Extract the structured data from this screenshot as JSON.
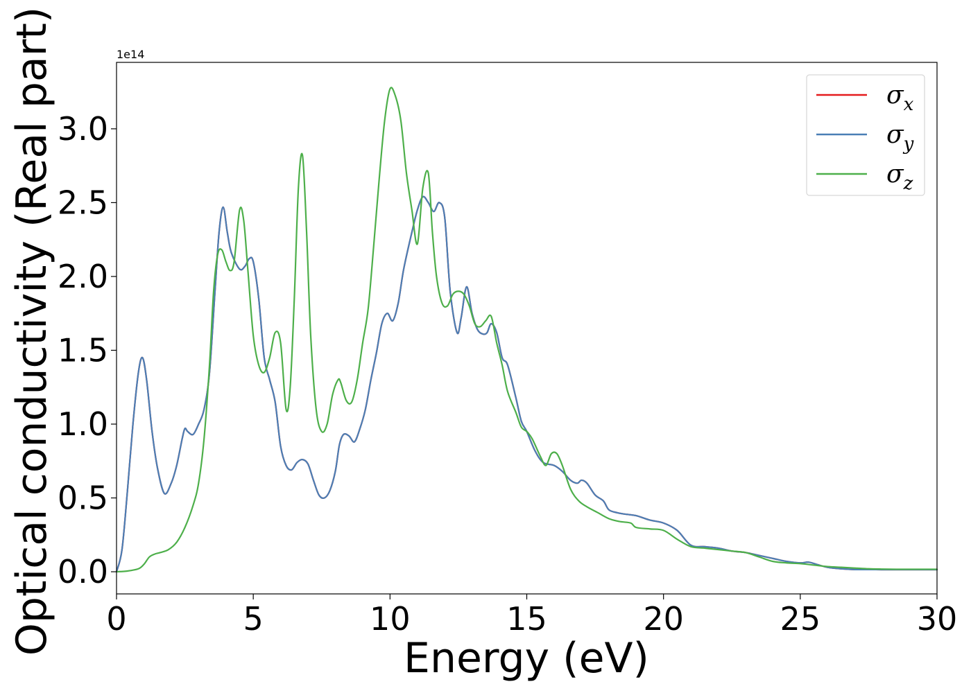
{
  "chart_data": {
    "type": "line",
    "xlabel": "Energy (eV)",
    "ylabel": "Optical conductivity (Real part)",
    "y_offset_label": "1e14",
    "xlim": [
      0,
      30
    ],
    "ylim": [
      -0.15,
      3.45
    ],
    "x_ticks": [
      "0",
      "5",
      "10",
      "15",
      "20",
      "25",
      "30"
    ],
    "y_ticks": [
      "0.0",
      "0.5",
      "1.0",
      "1.5",
      "2.0",
      "2.5",
      "3.0"
    ],
    "legend_position": "top-right",
    "grid": false,
    "series": [
      {
        "name": "σx",
        "label_symbol": "σ",
        "label_sub": "x",
        "color": "#e41a1c",
        "x": [
          0,
          0.2,
          0.4,
          0.6,
          0.8,
          0.95,
          1.1,
          1.3,
          1.5,
          1.75,
          2.0,
          2.2,
          2.4,
          2.5,
          2.6,
          2.8,
          3.0,
          3.2,
          3.4,
          3.6,
          3.75,
          3.9,
          4.05,
          4.2,
          4.5,
          4.7,
          4.85,
          5.0,
          5.2,
          5.4,
          5.6,
          5.8,
          6.0,
          6.2,
          6.4,
          6.6,
          6.8,
          7.0,
          7.2,
          7.4,
          7.6,
          7.8,
          8.0,
          8.15,
          8.3,
          8.5,
          8.7,
          8.9,
          9.1,
          9.3,
          9.5,
          9.7,
          9.9,
          10.1,
          10.3,
          10.5,
          10.8,
          11.0,
          11.2,
          11.4,
          11.6,
          11.8,
          12.0,
          12.2,
          12.45,
          12.6,
          12.8,
          13.0,
          13.2,
          13.4,
          13.55,
          13.7,
          13.9,
          14.1,
          14.3,
          14.6,
          14.8,
          15.0,
          15.3,
          15.6,
          16.0,
          16.3,
          16.6,
          16.85,
          17.0,
          17.2,
          17.5,
          17.8,
          18.0,
          18.3,
          18.6,
          19.0,
          19.5,
          20.0,
          20.5,
          21.0,
          21.5,
          22.0,
          22.5,
          23.0,
          23.5,
          24.0,
          24.5,
          25.0,
          25.3,
          25.6,
          26.0,
          26.5,
          27.0,
          27.5,
          28.0,
          28.5,
          29.0,
          29.5,
          30.0
        ],
        "y": [
          0,
          0.15,
          0.55,
          1.0,
          1.35,
          1.45,
          1.3,
          0.95,
          0.7,
          0.53,
          0.6,
          0.72,
          0.9,
          0.97,
          0.95,
          0.93,
          1.0,
          1.1,
          1.35,
          1.9,
          2.3,
          2.47,
          2.3,
          2.16,
          2.05,
          2.07,
          2.12,
          2.1,
          1.85,
          1.45,
          1.3,
          1.15,
          0.85,
          0.72,
          0.69,
          0.74,
          0.76,
          0.73,
          0.62,
          0.52,
          0.5,
          0.55,
          0.68,
          0.86,
          0.93,
          0.92,
          0.88,
          0.97,
          1.1,
          1.3,
          1.48,
          1.68,
          1.75,
          1.7,
          1.82,
          2.05,
          2.3,
          2.45,
          2.54,
          2.5,
          2.44,
          2.5,
          2.4,
          1.9,
          1.62,
          1.72,
          1.93,
          1.75,
          1.64,
          1.61,
          1.62,
          1.68,
          1.62,
          1.45,
          1.4,
          1.18,
          1.02,
          0.95,
          0.82,
          0.74,
          0.72,
          0.68,
          0.62,
          0.6,
          0.62,
          0.6,
          0.52,
          0.48,
          0.42,
          0.4,
          0.39,
          0.38,
          0.35,
          0.33,
          0.28,
          0.18,
          0.17,
          0.16,
          0.14,
          0.13,
          0.11,
          0.09,
          0.07,
          0.06,
          0.065,
          0.05,
          0.03,
          0.02,
          0.015,
          0.015,
          0.014,
          0.014,
          0.014,
          0.014,
          0.014
        ]
      },
      {
        "name": "σy",
        "label_symbol": "σ",
        "label_sub": "y",
        "color": "#4a7fb5",
        "x": [
          0,
          0.2,
          0.4,
          0.6,
          0.8,
          0.95,
          1.1,
          1.3,
          1.5,
          1.75,
          2.0,
          2.2,
          2.4,
          2.5,
          2.6,
          2.8,
          3.0,
          3.2,
          3.4,
          3.6,
          3.75,
          3.9,
          4.05,
          4.2,
          4.5,
          4.7,
          4.85,
          5.0,
          5.2,
          5.4,
          5.6,
          5.8,
          6.0,
          6.2,
          6.4,
          6.6,
          6.8,
          7.0,
          7.2,
          7.4,
          7.6,
          7.8,
          8.0,
          8.15,
          8.3,
          8.5,
          8.7,
          8.9,
          9.1,
          9.3,
          9.5,
          9.7,
          9.9,
          10.1,
          10.3,
          10.5,
          10.8,
          11.0,
          11.2,
          11.4,
          11.6,
          11.8,
          12.0,
          12.2,
          12.45,
          12.6,
          12.8,
          13.0,
          13.2,
          13.4,
          13.55,
          13.7,
          13.9,
          14.1,
          14.3,
          14.6,
          14.8,
          15.0,
          15.3,
          15.6,
          16.0,
          16.3,
          16.6,
          16.85,
          17.0,
          17.2,
          17.5,
          17.8,
          18.0,
          18.3,
          18.6,
          19.0,
          19.5,
          20.0,
          20.5,
          21.0,
          21.5,
          22.0,
          22.5,
          23.0,
          23.5,
          24.0,
          24.5,
          25.0,
          25.3,
          25.6,
          26.0,
          26.5,
          27.0,
          27.5,
          28.0,
          28.5,
          29.0,
          29.5,
          30.0
        ],
        "y": [
          0,
          0.15,
          0.55,
          1.0,
          1.35,
          1.45,
          1.3,
          0.95,
          0.7,
          0.53,
          0.6,
          0.72,
          0.9,
          0.97,
          0.95,
          0.93,
          1.0,
          1.1,
          1.35,
          1.9,
          2.3,
          2.47,
          2.3,
          2.16,
          2.05,
          2.07,
          2.12,
          2.1,
          1.85,
          1.45,
          1.3,
          1.15,
          0.85,
          0.72,
          0.69,
          0.74,
          0.76,
          0.73,
          0.62,
          0.52,
          0.5,
          0.55,
          0.68,
          0.86,
          0.93,
          0.92,
          0.88,
          0.97,
          1.1,
          1.3,
          1.48,
          1.68,
          1.75,
          1.7,
          1.82,
          2.05,
          2.3,
          2.45,
          2.54,
          2.5,
          2.44,
          2.5,
          2.4,
          1.9,
          1.62,
          1.72,
          1.93,
          1.75,
          1.64,
          1.61,
          1.62,
          1.68,
          1.62,
          1.45,
          1.4,
          1.18,
          1.02,
          0.95,
          0.82,
          0.74,
          0.72,
          0.68,
          0.62,
          0.6,
          0.62,
          0.6,
          0.52,
          0.48,
          0.42,
          0.4,
          0.39,
          0.38,
          0.35,
          0.33,
          0.28,
          0.18,
          0.17,
          0.16,
          0.14,
          0.13,
          0.11,
          0.09,
          0.07,
          0.06,
          0.065,
          0.05,
          0.03,
          0.02,
          0.015,
          0.015,
          0.014,
          0.014,
          0.014,
          0.014,
          0.014
        ]
      },
      {
        "name": "σz",
        "label_symbol": "σ",
        "label_sub": "z",
        "color": "#4daf4a",
        "x": [
          0,
          0.4,
          0.8,
          1.0,
          1.2,
          1.4,
          1.6,
          1.9,
          2.2,
          2.5,
          2.8,
          3.0,
          3.2,
          3.4,
          3.55,
          3.7,
          3.85,
          4.0,
          4.15,
          4.3,
          4.5,
          4.65,
          4.8,
          5.0,
          5.2,
          5.4,
          5.6,
          5.8,
          6.0,
          6.2,
          6.35,
          6.5,
          6.65,
          6.8,
          6.95,
          7.1,
          7.3,
          7.5,
          7.7,
          7.9,
          8.1,
          8.2,
          8.4,
          8.6,
          8.8,
          9.0,
          9.2,
          9.4,
          9.6,
          9.8,
          10.0,
          10.2,
          10.4,
          10.6,
          10.8,
          11.0,
          11.2,
          11.4,
          11.55,
          11.7,
          11.9,
          12.1,
          12.3,
          12.5,
          12.7,
          12.9,
          13.1,
          13.3,
          13.5,
          13.7,
          13.9,
          14.1,
          14.3,
          14.6,
          14.8,
          15.0,
          15.2,
          15.5,
          15.7,
          15.9,
          16.1,
          16.3,
          16.6,
          16.9,
          17.2,
          17.6,
          18.0,
          18.4,
          18.8,
          19.0,
          19.5,
          20.0,
          20.5,
          21.0,
          21.5,
          22.0,
          22.5,
          23.0,
          23.5,
          24.0,
          24.5,
          25.0,
          25.5,
          26.0,
          26.5,
          27.0,
          27.5,
          28.0,
          28.5,
          29.0,
          29.5,
          30.0
        ],
        "y": [
          0,
          0.005,
          0.02,
          0.05,
          0.1,
          0.12,
          0.13,
          0.15,
          0.2,
          0.3,
          0.45,
          0.6,
          0.9,
          1.4,
          1.9,
          2.15,
          2.18,
          2.1,
          2.04,
          2.1,
          2.45,
          2.38,
          2.05,
          1.6,
          1.4,
          1.35,
          1.45,
          1.62,
          1.55,
          1.1,
          1.25,
          1.85,
          2.6,
          2.82,
          2.3,
          1.6,
          1.1,
          0.95,
          1.0,
          1.2,
          1.3,
          1.28,
          1.16,
          1.15,
          1.3,
          1.55,
          1.78,
          2.2,
          2.65,
          3.05,
          3.27,
          3.22,
          3.05,
          2.7,
          2.45,
          2.22,
          2.6,
          2.7,
          2.3,
          2.0,
          1.82,
          1.8,
          1.88,
          1.9,
          1.88,
          1.8,
          1.68,
          1.66,
          1.7,
          1.73,
          1.55,
          1.4,
          1.22,
          1.08,
          0.98,
          0.95,
          0.9,
          0.78,
          0.72,
          0.8,
          0.8,
          0.72,
          0.56,
          0.48,
          0.44,
          0.4,
          0.36,
          0.34,
          0.33,
          0.3,
          0.29,
          0.28,
          0.22,
          0.17,
          0.16,
          0.15,
          0.14,
          0.13,
          0.1,
          0.07,
          0.06,
          0.055,
          0.045,
          0.035,
          0.03,
          0.025,
          0.02,
          0.018,
          0.017,
          0.017,
          0.017,
          0.017
        ]
      }
    ]
  }
}
